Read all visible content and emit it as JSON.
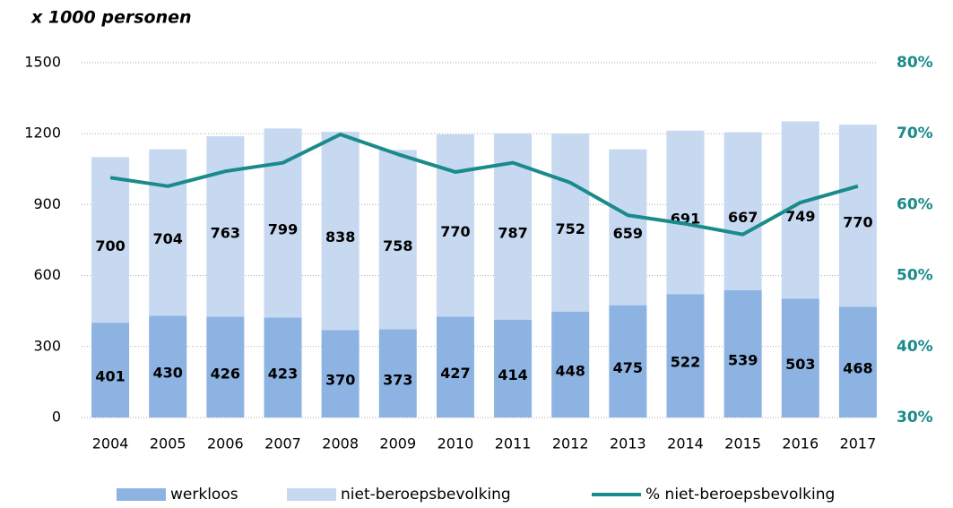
{
  "chart_data": {
    "type": "bar",
    "stacked": true,
    "title": "x 1000 personen",
    "categories": [
      "2004",
      "2005",
      "2006",
      "2007",
      "2008",
      "2009",
      "2010",
      "2011",
      "2012",
      "2013",
      "2014",
      "2015",
      "2016",
      "2017"
    ],
    "series": [
      {
        "name": "werkloos",
        "type": "bar",
        "color": "#8db3e2",
        "values": [
          401,
          430,
          426,
          423,
          370,
          373,
          427,
          414,
          448,
          475,
          522,
          539,
          503,
          468
        ]
      },
      {
        "name": "niet-beroepsbevolking",
        "type": "bar",
        "color": "#c6d9f1",
        "values": [
          700,
          704,
          763,
          799,
          838,
          758,
          770,
          787,
          752,
          659,
          691,
          667,
          749,
          770
        ]
      },
      {
        "name": "% niet-beroepsbevolking",
        "type": "line",
        "axis": "y2",
        "color": "#1a8a8a",
        "values": [
          63.8,
          62.6,
          64.7,
          65.9,
          69.9,
          67.1,
          64.6,
          65.9,
          63.1,
          58.5,
          57.3,
          55.8,
          60.3,
          62.6
        ]
      }
    ],
    "ylim": [
      0,
      1500
    ],
    "yticks": [
      0,
      300,
      600,
      900,
      1200,
      1500
    ],
    "y2lim": [
      30,
      80
    ],
    "y2ticks": [
      {
        "value": 30,
        "label": "30%"
      },
      {
        "value": 40,
        "label": "40%"
      },
      {
        "value": 50,
        "label": "50%"
      },
      {
        "value": 60,
        "label": "60%"
      },
      {
        "value": 70,
        "label": "70%"
      },
      {
        "value": 80,
        "label": "80%"
      }
    ],
    "grid": true,
    "legend": "bottom"
  }
}
